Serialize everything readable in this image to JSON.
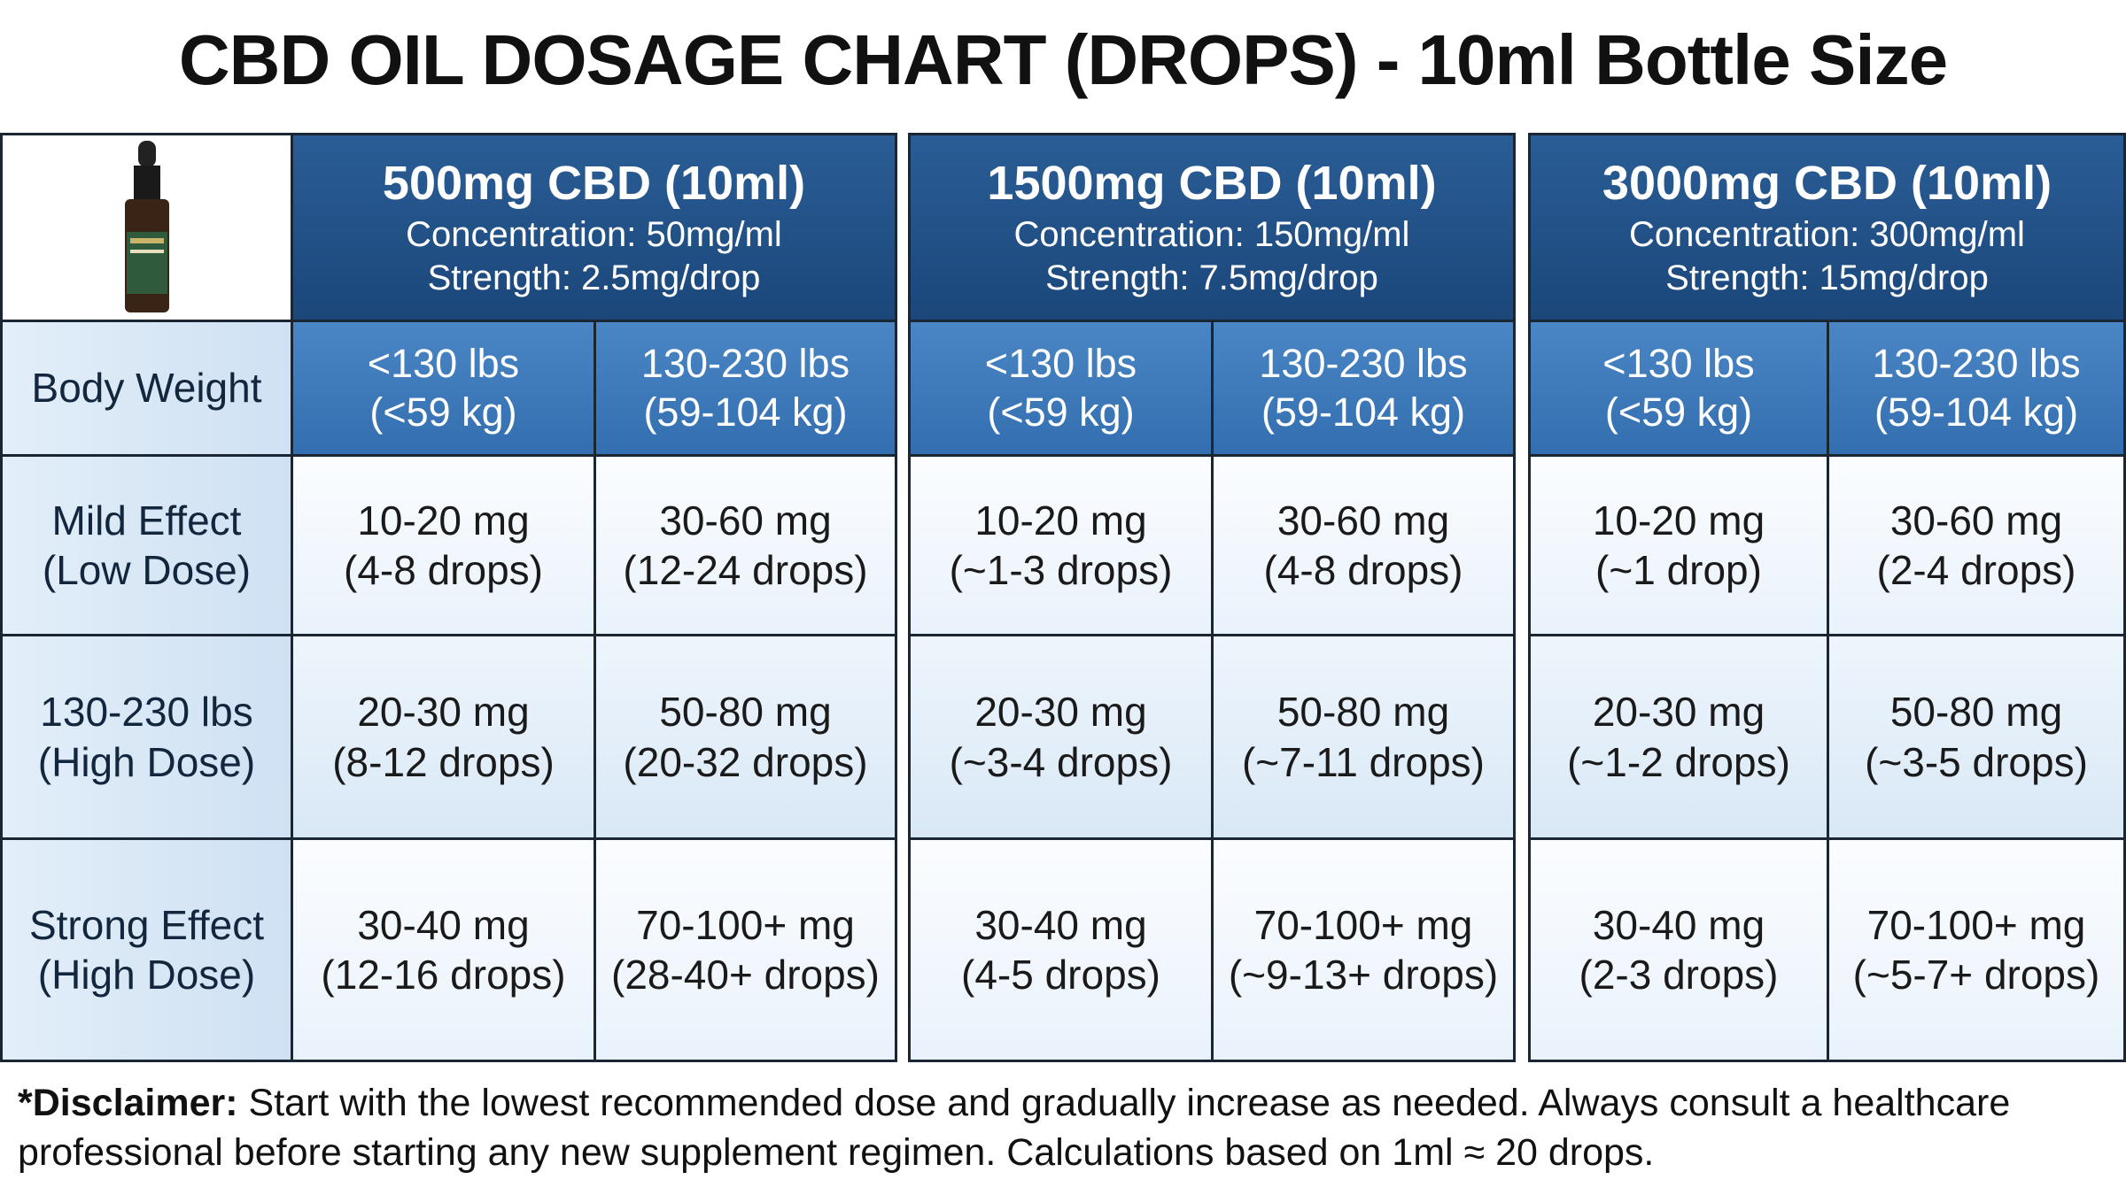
{
  "title": "CBD OIL DOSAGE CHART (DROPS) - 10ml Bottle Size",
  "table": {
    "weight_label": "Body Weight",
    "products": [
      {
        "name": "500mg CBD (10ml)",
        "concentration": "Concentration: 50mg/ml",
        "strength": "Strength: 2.5mg/drop",
        "weights": [
          [
            "<130 lbs",
            "(<59 kg)"
          ],
          [
            "130-230 lbs",
            "(59-104 kg)"
          ]
        ]
      },
      {
        "name": "1500mg CBD (10ml)",
        "concentration": "Concentration: 150mg/ml",
        "strength": "Strength: 7.5mg/drop",
        "weights": [
          [
            "<130 lbs",
            "(<59 kg)"
          ],
          [
            "130-230 lbs",
            "(59-104 kg)"
          ]
        ]
      },
      {
        "name": "3000mg CBD (10ml)",
        "concentration": "Concentration: 300mg/ml",
        "strength": "Strength: 15mg/drop",
        "weights": [
          [
            "<130 lbs",
            "(<59 kg)"
          ],
          [
            "130-230 lbs",
            "(59-104 kg)"
          ]
        ]
      }
    ],
    "rows": [
      {
        "label": [
          "Mild Effect",
          "(Low Dose)"
        ],
        "cells": [
          [
            "10-20 mg",
            "(4-8 drops)"
          ],
          [
            "30-60 mg",
            "(12-24 drops)"
          ],
          [
            "10-20 mg",
            "(~1-3 drops)"
          ],
          [
            "30-60 mg",
            "(4-8 drops)"
          ],
          [
            "10-20 mg",
            "(~1 drop)"
          ],
          [
            "30-60 mg",
            "(2-4 drops)"
          ]
        ]
      },
      {
        "label": [
          "130-230 lbs",
          "(High Dose)"
        ],
        "cells": [
          [
            "20-30 mg",
            "(8-12 drops)"
          ],
          [
            "50-80 mg",
            "(20-32 drops)"
          ],
          [
            "20-30 mg",
            "(~3-4 drops)"
          ],
          [
            "50-80 mg",
            "(~7-11 drops)"
          ],
          [
            "20-30 mg",
            "(~1-2 drops)"
          ],
          [
            "50-80 mg",
            "(~3-5 drops)"
          ]
        ]
      },
      {
        "label": [
          "Strong Effect",
          "(High Dose)"
        ],
        "cells": [
          [
            "30-40 mg",
            "(12-16 drops)"
          ],
          [
            "70-100+ mg",
            "(28-40+ drops)"
          ],
          [
            "30-40 mg",
            "(4-5 drops)"
          ],
          [
            "70-100+ mg",
            "(~9-13+ drops)"
          ],
          [
            "30-40 mg",
            "(2-3 drops)"
          ],
          [
            "70-100+ mg",
            "(~5-7+ drops)"
          ]
        ]
      }
    ]
  },
  "disclaimer": {
    "bold": "*Disclaimer:",
    "text": "Start with the lowest recommended dose and gradually increase as needed. Always consult a healthcare professional before starting any new supplement regimen. Calculations based on 1ml ≈ 20 drops."
  }
}
